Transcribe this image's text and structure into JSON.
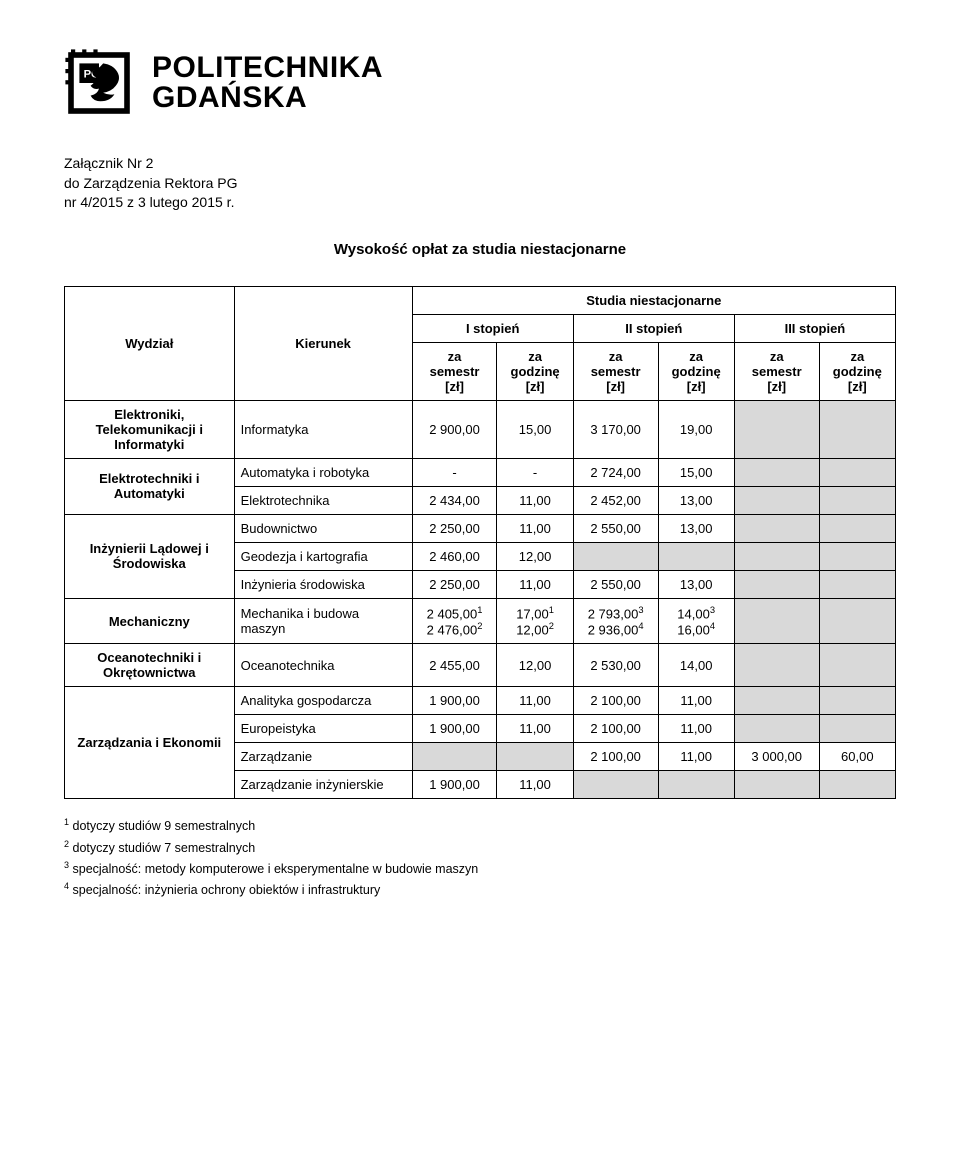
{
  "brand": {
    "line1": "POLITECHNIKA",
    "line2": "GDAŃSKA"
  },
  "meta": {
    "line1": "Załącznik Nr 2",
    "line2": "do Zarządzenia Rektora PG",
    "line3": "nr 4/2015 z 3 lutego 2015 r."
  },
  "title": "Wysokość opłat za studia niestacjonarne",
  "tableHeader": {
    "wydzial": "Wydział",
    "kierunek": "Kierunek",
    "super": "Studia niestacjonarne",
    "levels": [
      "I stopień",
      "II stopień",
      "III stopień"
    ],
    "sub_sem": "za\nsemestr\n[zł]",
    "sub_hr": "za\ngodzinę\n[zł]"
  },
  "rows": [
    {
      "wydzial": "Elektroniki, Telekomunikacji i Informatyki",
      "kierunek": "Informatyka",
      "c": [
        "2 900,00",
        "15,00",
        "3 170,00",
        "19,00",
        "GREY",
        "GREY"
      ]
    },
    {
      "wydzial": "Elektrotechniki i Automatyki",
      "rowspan": 2,
      "kierunek": "Automatyka i robotyka",
      "c": [
        "-",
        "-",
        "2 724,00",
        "15,00",
        "GREY",
        "GREY"
      ]
    },
    {
      "kierunek": "Elektrotechnika",
      "c": [
        "2 434,00",
        "11,00",
        "2 452,00",
        "13,00",
        "GREY",
        "GREY"
      ]
    },
    {
      "wydzial": "Inżynierii Lądowej i Środowiska",
      "rowspan": 3,
      "kierunek": "Budownictwo",
      "c": [
        "2 250,00",
        "11,00",
        "2 550,00",
        "13,00",
        "GREY",
        "GREY"
      ]
    },
    {
      "kierunek": "Geodezja i kartografia",
      "c": [
        "2 460,00",
        "12,00",
        "GREY",
        "GREY",
        "GREY",
        "GREY"
      ]
    },
    {
      "kierunek": "Inżynieria środowiska",
      "c": [
        "2 250,00",
        "11,00",
        "2 550,00",
        "13,00",
        "GREY",
        "GREY"
      ]
    },
    {
      "wydzial": "Mechaniczny",
      "kierunek": "Mechanika i budowa maszyn",
      "c": [
        "",
        "",
        "",
        "",
        "GREY",
        "GREY"
      ],
      "multi": {
        "c1": [
          "2 405,00",
          "1",
          "2 476,00",
          "2"
        ],
        "c2": [
          "17,00",
          "1",
          "12,00",
          "2"
        ],
        "c3": [
          "2 793,00",
          "3",
          "2 936,00",
          "4"
        ],
        "c4": [
          "14,00",
          "3",
          "16,00",
          "4"
        ]
      }
    },
    {
      "wydzial": "Oceanotechniki i Okrętownictwa",
      "kierunek": "Oceanotechnika",
      "c": [
        "2 455,00",
        "12,00",
        "2 530,00",
        "14,00",
        "GREY",
        "GREY"
      ]
    },
    {
      "wydzial": "Zarządzania i Ekonomii",
      "rowspan": 4,
      "kierunek": "Analityka gospodarcza",
      "c": [
        "1 900,00",
        "11,00",
        "2 100,00",
        "11,00",
        "GREY",
        "GREY"
      ]
    },
    {
      "kierunek": "Europeistyka",
      "c": [
        "1 900,00",
        "11,00",
        "2 100,00",
        "11,00",
        "GREY",
        "GREY"
      ]
    },
    {
      "kierunek": "Zarządzanie",
      "c": [
        "GREY",
        "GREY",
        "2 100,00",
        "11,00",
        "3 000,00",
        "60,00"
      ]
    },
    {
      "kierunek": "Zarządzanie inżynierskie",
      "c": [
        "1 900,00",
        "11,00",
        "GREY",
        "GREY",
        "GREY",
        "GREY"
      ]
    }
  ],
  "footnotes": [
    [
      "1",
      " dotyczy studiów 9 semestralnych"
    ],
    [
      "2",
      " dotyczy studiów 7 semestralnych"
    ],
    [
      "3",
      " specjalność: metody komputerowe i eksperymentalne w budowie maszyn"
    ],
    [
      "4",
      " specjalność: inżynieria ochrony obiektów i infrastruktury"
    ]
  ],
  "colors": {
    "grey": "#d9d9d9",
    "text": "#000000",
    "bg": "#ffffff",
    "border": "#000000"
  },
  "column_widths_pct": [
    20,
    21,
    10,
    9,
    10,
    9,
    10,
    9
  ]
}
